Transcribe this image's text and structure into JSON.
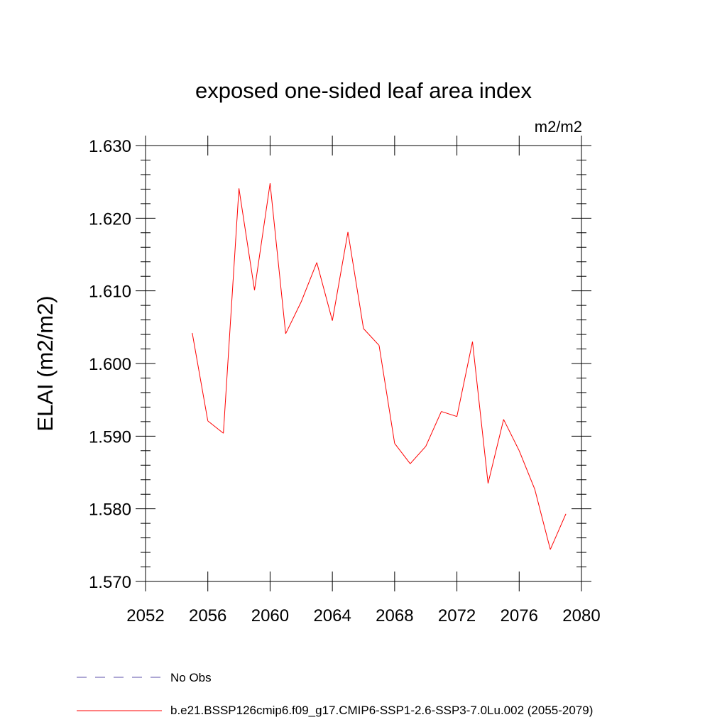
{
  "chart_data": {
    "type": "line",
    "title": "exposed one-sided leaf area index",
    "units": "m2/m2",
    "ylabel": "ELAI  (m2/m2)",
    "xlabel": "",
    "xlim": [
      2052,
      2080
    ],
    "ylim": [
      1.57,
      1.63
    ],
    "x_ticks": [
      2052,
      2056,
      2060,
      2064,
      2068,
      2072,
      2076,
      2080
    ],
    "y_ticks": [
      1.57,
      1.58,
      1.59,
      1.6,
      1.61,
      1.62,
      1.63
    ],
    "x_tick_labels": [
      "2052",
      "2056",
      "2060",
      "2064",
      "2068",
      "2072",
      "2076",
      "2080"
    ],
    "y_tick_labels": [
      "1.570",
      "1.580",
      "1.590",
      "1.600",
      "1.610",
      "1.620",
      "1.630"
    ],
    "grid": false,
    "legend_position": "bottom",
    "series": [
      {
        "name": "b.e21.BSSP126cmip6.f09_g17.CMIP6-SSP1-2.6-SSP3-7.0Lu.002 (2055-2079)",
        "color": "#ff0000",
        "x": [
          2055,
          2056,
          2057,
          2058,
          2059,
          2060,
          2061,
          2062,
          2063,
          2064,
          2065,
          2066,
          2067,
          2068,
          2069,
          2070,
          2071,
          2072,
          2073,
          2074,
          2075,
          2076,
          2077,
          2078,
          2079
        ],
        "values": [
          1.6042,
          1.5921,
          1.5904,
          1.6241,
          1.6101,
          1.6248,
          1.6041,
          1.6085,
          1.6139,
          1.6059,
          1.6181,
          1.6048,
          1.6025,
          1.589,
          1.5862,
          1.5886,
          1.5934,
          1.5927,
          1.603,
          1.5835,
          1.5923,
          1.588,
          1.5827,
          1.5744,
          1.5793
        ]
      }
    ],
    "legend": [
      {
        "label": "No Obs",
        "color": "#5b4fa8",
        "style": "dashed"
      },
      {
        "label": "b.e21.BSSP126cmip6.f09_g17.CMIP6-SSP1-2.6-SSP3-7.0Lu.002 (2055-2079)",
        "color": "#ff0000",
        "style": "solid"
      }
    ]
  }
}
